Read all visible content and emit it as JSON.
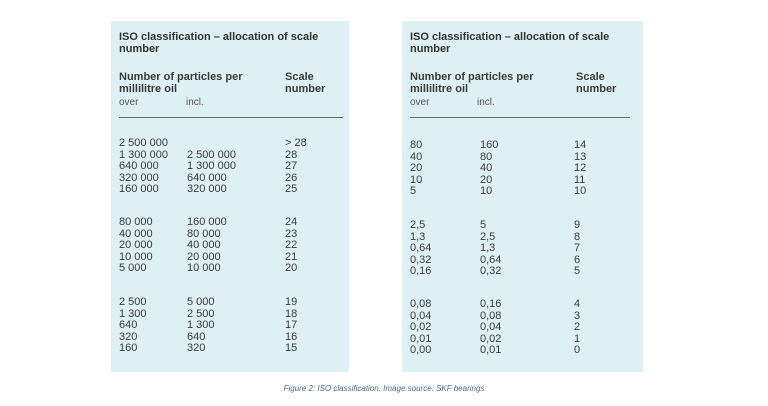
{
  "left_table": {
    "title": "ISO classification – allocation of scale number",
    "header_particles": "Number of particles per millilitre oil",
    "header_scale": "Scale number",
    "sub_over": "over",
    "sub_incl": "incl.",
    "groups": [
      [
        [
          "2 500 000",
          "",
          "> 28"
        ],
        [
          "1 300 000",
          "2 500 000",
          "28"
        ],
        [
          "640 000",
          "1 300 000",
          "27"
        ],
        [
          "320 000",
          "640 000",
          "26"
        ],
        [
          "160 000",
          "320 000",
          "25"
        ]
      ],
      [
        [
          "80 000",
          "160 000",
          "24"
        ],
        [
          "40 000",
          "80 000",
          "23"
        ],
        [
          "20 000",
          "40 000",
          "22"
        ],
        [
          "10 000",
          "20 000",
          "21"
        ],
        [
          "5 000",
          "10 000",
          "20"
        ]
      ],
      [
        [
          "2 500",
          "5 000",
          "19"
        ],
        [
          "1 300",
          "2 500",
          "18"
        ],
        [
          "640",
          "1 300",
          "17"
        ],
        [
          "320",
          "640",
          "16"
        ],
        [
          "160",
          "320",
          "15"
        ]
      ]
    ]
  },
  "right_table": {
    "title": "ISO classification – allocation of scale number",
    "header_particles": "Number of particles per millilitre oil",
    "header_scale": "Scale number",
    "sub_over": "over",
    "sub_incl": "incl.",
    "groups": [
      [
        [
          "80",
          "160",
          "14"
        ],
        [
          "40",
          "80",
          "13"
        ],
        [
          "20",
          "40",
          "12"
        ],
        [
          "10",
          "20",
          "11"
        ],
        [
          "5",
          "10",
          "10"
        ]
      ],
      [
        [
          "2,5",
          "5",
          "9"
        ],
        [
          "1,3",
          "2,5",
          "8"
        ],
        [
          "0,64",
          "1,3",
          "7"
        ],
        [
          "0,32",
          "0,64",
          "6"
        ],
        [
          "0,16",
          "0,32",
          "5"
        ]
      ],
      [
        [
          "0,08",
          "0,16",
          "4"
        ],
        [
          "0,04",
          "0,08",
          "3"
        ],
        [
          "0,02",
          "0,04",
          "2"
        ],
        [
          "0,01",
          "0,02",
          "1"
        ],
        [
          "0,00",
          "0,01",
          "0"
        ]
      ]
    ]
  },
  "caption": "Figure 2: ISO classification. Image source: SKF bearings"
}
